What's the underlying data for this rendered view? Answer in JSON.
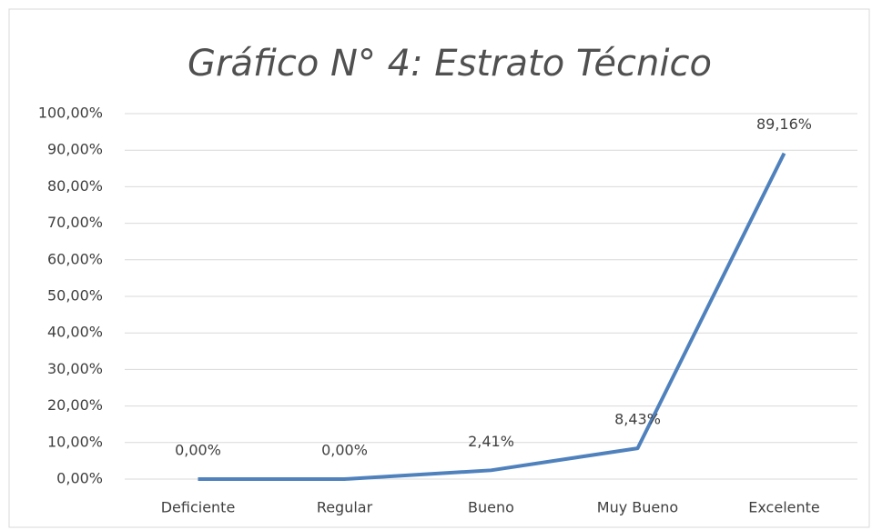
{
  "chart_data": {
    "type": "line",
    "title": "Gráfico N° 4: Estrato Técnico",
    "categories": [
      "Deficiente",
      "Regular",
      "Bueno",
      "Muy Bueno",
      "Excelente"
    ],
    "series": [
      {
        "name": "Estrato Técnico",
        "color": "#4f81bd",
        "values": [
          0,
          0,
          2.41,
          8.43,
          89.16
        ],
        "value_labels": [
          "0,00%",
          "0,00%",
          "2,41%",
          "8,43%",
          "89,16%"
        ]
      }
    ],
    "ylim": [
      0,
      100
    ],
    "yticks": [
      {
        "value": 0,
        "label": "0,00%"
      },
      {
        "value": 10,
        "label": "10,00%"
      },
      {
        "value": 20,
        "label": "20,00%"
      },
      {
        "value": 30,
        "label": "30,00%"
      },
      {
        "value": 40,
        "label": "40,00%"
      },
      {
        "value": 50,
        "label": "50,00%"
      },
      {
        "value": 60,
        "label": "60,00%"
      },
      {
        "value": 70,
        "label": "70,00%"
      },
      {
        "value": 80,
        "label": "80,00%"
      },
      {
        "value": 90,
        "label": "90,00%"
      },
      {
        "value": 100,
        "label": "100,00%"
      }
    ],
    "grid": true
  }
}
